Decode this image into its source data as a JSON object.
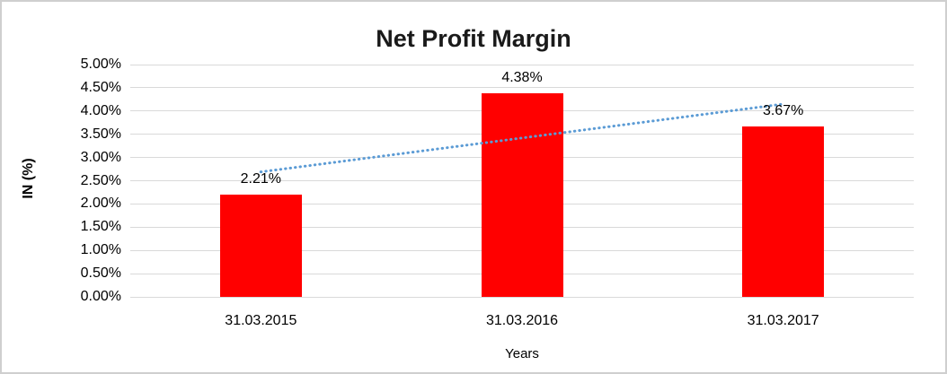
{
  "chart_data": {
    "type": "bar",
    "title": "Net Profit Margin",
    "xlabel": "Years",
    "ylabel": "IN (%)",
    "categories": [
      "31.03.2015",
      "31.03.2016",
      "31.03.2017"
    ],
    "values": [
      2.21,
      4.38,
      3.67
    ],
    "data_labels": [
      "2.21%",
      "4.38%",
      "3.67%"
    ],
    "y_ticks": [
      "0.00%",
      "0.50%",
      "1.00%",
      "1.50%",
      "2.00%",
      "2.50%",
      "3.00%",
      "3.50%",
      "4.00%",
      "4.50%",
      "5.00%"
    ],
    "ylim": [
      0,
      5
    ],
    "y_tick_step": 0.5,
    "grid": "horizontal",
    "legend": "none",
    "bar_color": "#FF0000",
    "gridline_color": "#D9D9D9",
    "trendline": {
      "type": "linear",
      "style": "dotted",
      "color": "#5B9BD5"
    }
  }
}
